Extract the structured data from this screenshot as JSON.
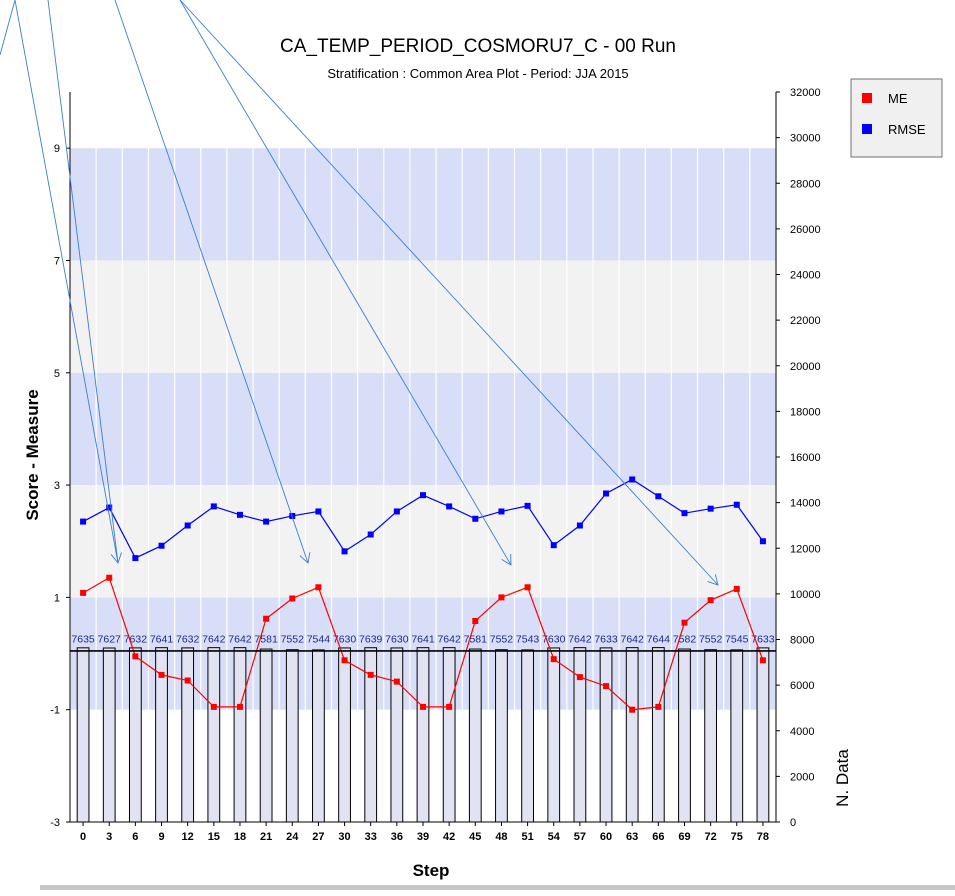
{
  "chart_data": {
    "type": "line",
    "title": "CA_TEMP_PERIOD_COSMORU7_C - 00 Run",
    "subtitle": "Stratification : Common Area Plot - Period: JJA 2015",
    "xlabel": "Step",
    "ylabel": "Score - Measure",
    "y2label": "N. Data",
    "x": [
      0,
      3,
      6,
      9,
      12,
      15,
      18,
      21,
      24,
      27,
      30,
      33,
      36,
      39,
      42,
      45,
      48,
      51,
      54,
      57,
      60,
      63,
      66,
      69,
      72,
      75,
      78
    ],
    "ylim": [
      -3,
      10
    ],
    "y_ticks": [
      -3,
      -1,
      1,
      3,
      5,
      7,
      9
    ],
    "y2lim": [
      0,
      32000
    ],
    "y2_ticks": [
      0,
      2000,
      4000,
      6000,
      8000,
      10000,
      12000,
      14000,
      16000,
      18000,
      20000,
      22000,
      24000,
      26000,
      28000,
      30000,
      32000
    ],
    "series": [
      {
        "name": "ME",
        "color": "#ff0000",
        "values": [
          1.08,
          1.35,
          -0.05,
          -0.38,
          -0.48,
          -0.95,
          -0.95,
          0.62,
          0.98,
          1.18,
          -0.12,
          -0.38,
          -0.5,
          -0.95,
          -0.95,
          0.58,
          1.0,
          1.18,
          -0.1,
          -0.42,
          -0.58,
          -1.0,
          -0.95,
          0.55,
          0.95,
          1.15,
          -0.12
        ]
      },
      {
        "name": "RMSE",
        "color": "#0000ff",
        "values": [
          2.35,
          2.6,
          1.7,
          1.92,
          2.28,
          2.62,
          2.47,
          2.35,
          2.45,
          2.53,
          1.82,
          2.12,
          2.53,
          2.82,
          2.62,
          2.4,
          2.53,
          2.63,
          1.93,
          2.28,
          2.85,
          3.1,
          2.8,
          2.5,
          2.58,
          2.65,
          2.0
        ]
      }
    ],
    "n_data": {
      "values": [
        7635,
        7627,
        7632,
        7641,
        7632,
        7642,
        7642,
        7581,
        7552,
        7544,
        7630,
        7639,
        7630,
        7641,
        7642,
        7581,
        7552,
        7543,
        7630,
        7642,
        7633,
        7642,
        7644,
        7582,
        7552,
        7545,
        7633
      ],
      "labels": [
        "7635",
        "7627",
        "7632",
        "7641",
        "7632",
        "7642",
        "7642",
        "7581",
        "7552",
        "7544",
        "7630",
        "7639",
        "7630",
        "7641",
        "7642",
        "7581",
        "7552",
        "7543",
        "7630",
        "7642",
        "7633",
        "7642",
        "7644",
        "7582",
        "7552",
        "7545",
        "7633"
      ]
    },
    "reference_line_y2": 7500,
    "bands": [
      {
        "from": 7,
        "to": 9,
        "color": "#d8def7"
      },
      {
        "from": 3,
        "to": 5,
        "color": "#d8def7"
      },
      {
        "from": -1,
        "to": 1,
        "color": "#d8def7"
      },
      {
        "from": 5,
        "to": 7,
        "color": "#f2f2f2"
      },
      {
        "from": 1,
        "to": 3,
        "color": "#f2f2f2"
      }
    ],
    "legend": {
      "position": "top-right",
      "entries": [
        "ME",
        "RMSE"
      ]
    },
    "grid": true
  }
}
